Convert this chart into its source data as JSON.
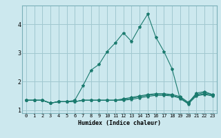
{
  "xlabel": "Humidex (Indice chaleur)",
  "bg_color": "#cce8ee",
  "grid_color": "#a0c8d0",
  "line_color": "#1a7a6e",
  "x_values": [
    0,
    1,
    2,
    3,
    4,
    5,
    6,
    7,
    8,
    9,
    10,
    11,
    12,
    13,
    14,
    15,
    16,
    17,
    18,
    19,
    20,
    21,
    22,
    23
  ],
  "series1": [
    1.35,
    1.35,
    1.35,
    1.25,
    1.3,
    1.3,
    1.35,
    1.85,
    2.4,
    2.6,
    3.05,
    3.35,
    3.7,
    3.4,
    3.9,
    4.35,
    3.55,
    3.05,
    2.45,
    1.4,
    1.25,
    1.6,
    1.65,
    1.55
  ],
  "series2": [
    1.35,
    1.35,
    1.35,
    1.25,
    1.3,
    1.3,
    1.3,
    1.35,
    1.35,
    1.35,
    1.35,
    1.35,
    1.4,
    1.45,
    1.5,
    1.55,
    1.58,
    1.58,
    1.55,
    1.48,
    1.28,
    1.55,
    1.62,
    1.55
  ],
  "series3": [
    1.35,
    1.35,
    1.35,
    1.25,
    1.3,
    1.3,
    1.3,
    1.35,
    1.35,
    1.35,
    1.35,
    1.35,
    1.37,
    1.42,
    1.47,
    1.52,
    1.55,
    1.55,
    1.52,
    1.45,
    1.25,
    1.52,
    1.58,
    1.52
  ],
  "series4": [
    1.35,
    1.35,
    1.35,
    1.25,
    1.3,
    1.3,
    1.3,
    1.35,
    1.35,
    1.35,
    1.35,
    1.35,
    1.35,
    1.38,
    1.43,
    1.48,
    1.52,
    1.52,
    1.5,
    1.42,
    1.22,
    1.5,
    1.55,
    1.5
  ],
  "ylim": [
    0.9,
    4.65
  ],
  "yticks": [
    1,
    2,
    3,
    4
  ],
  "xticks": [
    0,
    1,
    2,
    3,
    4,
    5,
    6,
    7,
    8,
    9,
    10,
    11,
    12,
    13,
    14,
    15,
    16,
    17,
    18,
    19,
    20,
    21,
    22,
    23
  ]
}
